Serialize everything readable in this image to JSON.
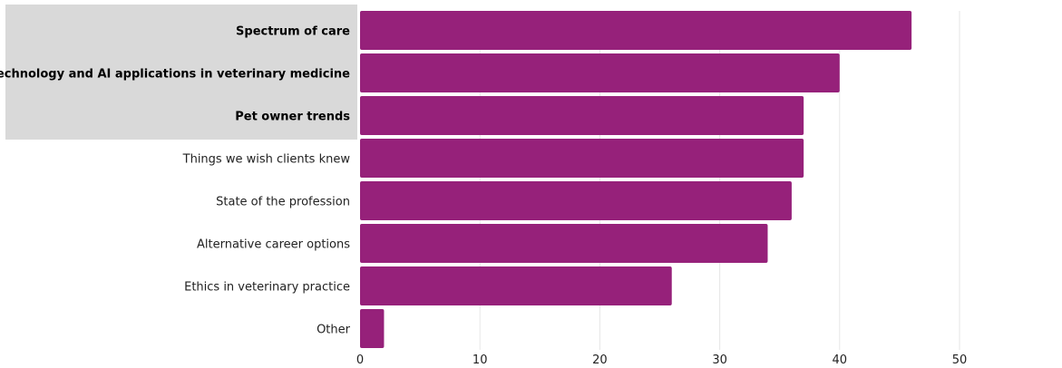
{
  "chart_data": {
    "type": "bar",
    "orientation": "horizontal",
    "categories": [
      "Spectrum of care",
      "Technology and AI applications in veterinary medicine",
      "Pet owner trends",
      "Things we wish clients knew",
      "State of the profession",
      "Alternative career options",
      "Ethics in veterinary practice",
      "Other"
    ],
    "values": [
      46,
      40,
      37,
      37,
      36,
      34,
      26,
      2
    ],
    "highlighted": [
      true,
      true,
      true,
      false,
      false,
      false,
      false,
      false
    ],
    "xlim": [
      0,
      50
    ],
    "xticks": [
      "0",
      "10",
      "20",
      "30",
      "40",
      "50"
    ],
    "grid": true,
    "title": "",
    "xlabel": "",
    "ylabel": ""
  },
  "colors": {
    "bar": "#96217a",
    "highlight_background": "#d9d9d9",
    "grid": "#e6e6e6"
  }
}
